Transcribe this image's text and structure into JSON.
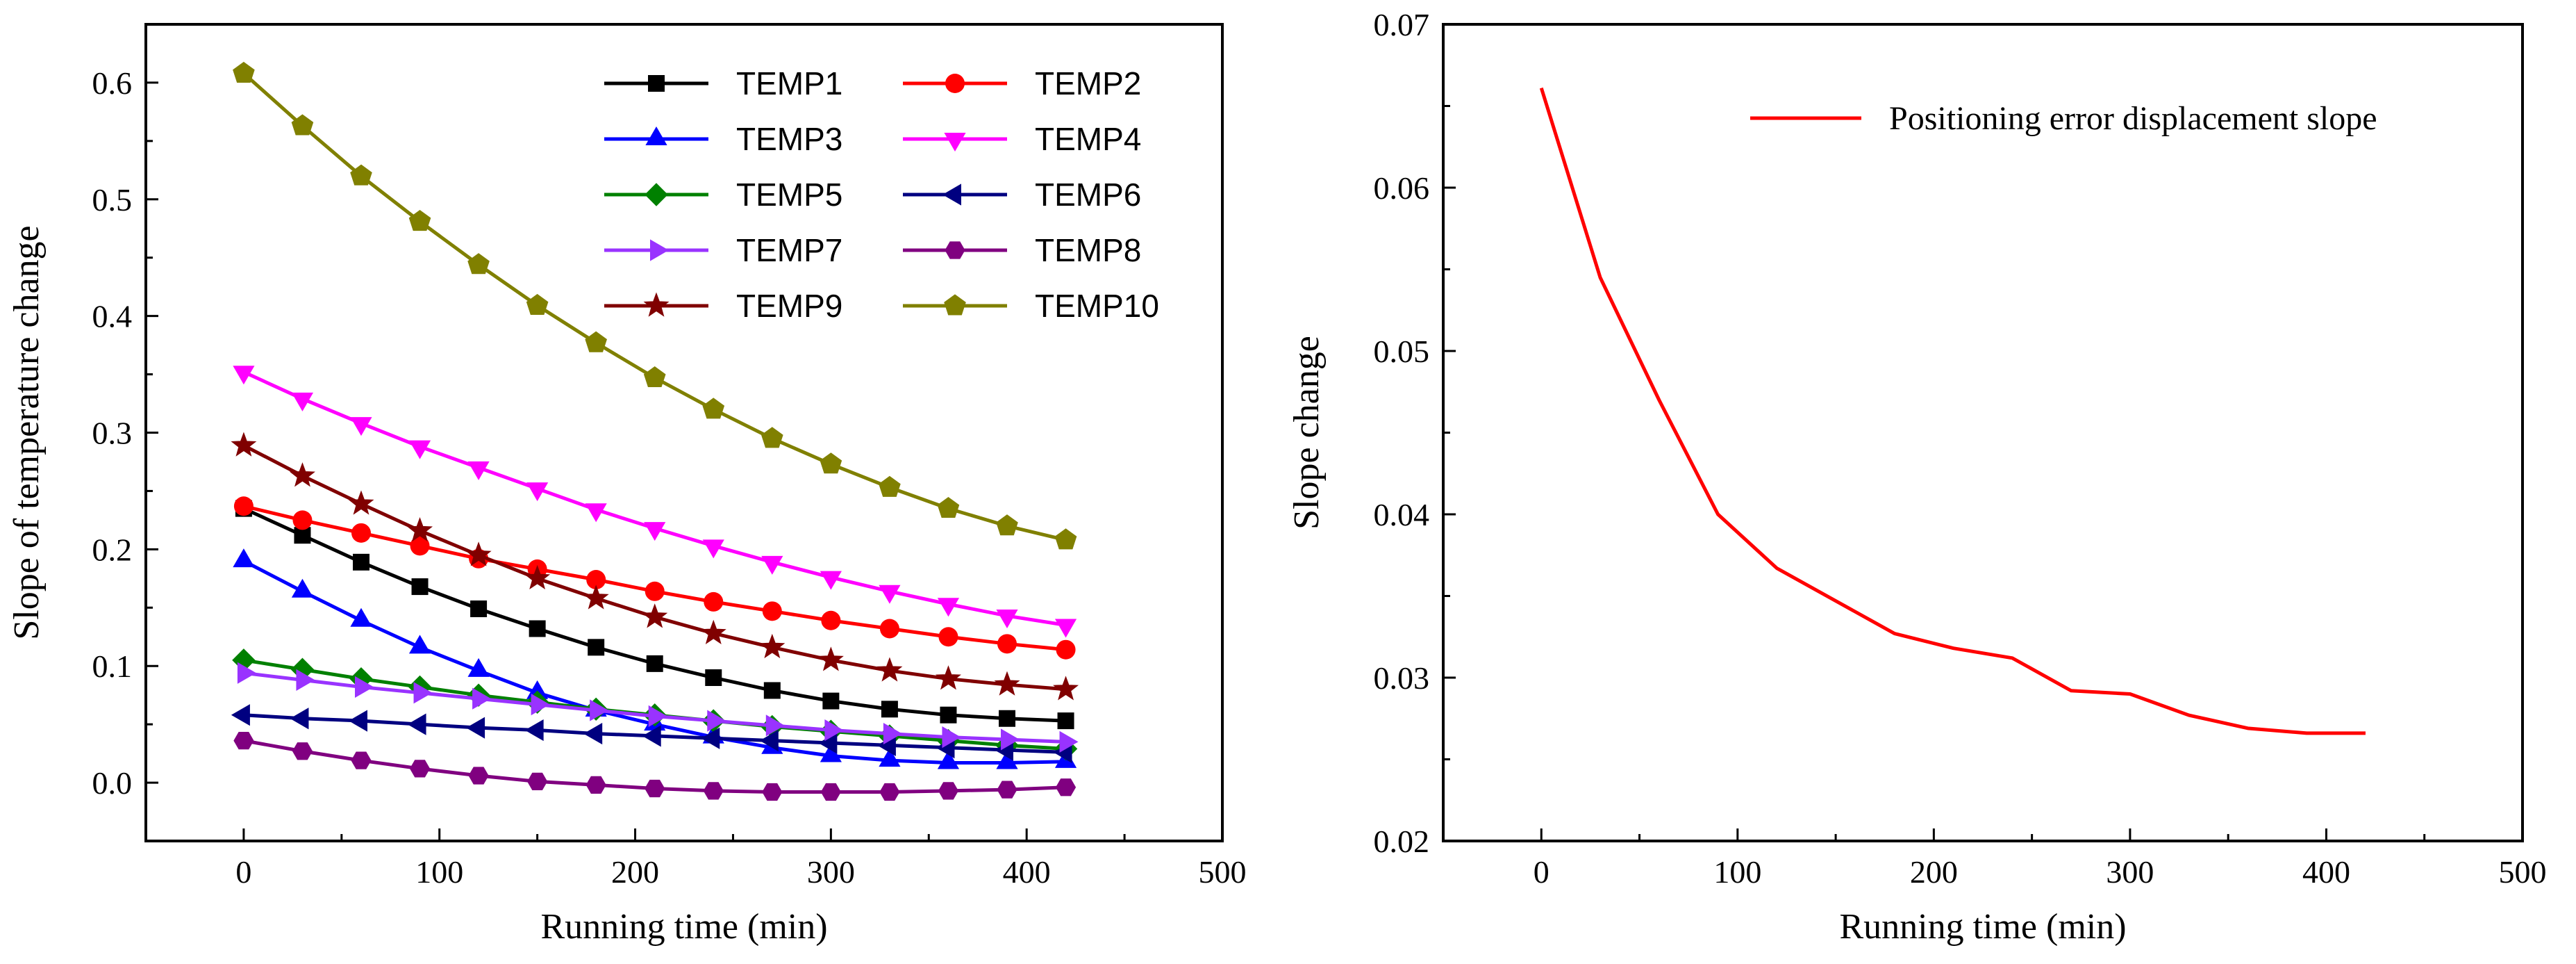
{
  "chart_data": [
    {
      "type": "line",
      "title": "",
      "xlabel": "Running time (min)",
      "ylabel": "Slope of temperature change",
      "xlim": [
        -50,
        500
      ],
      "ylim": [
        -0.05,
        0.65
      ],
      "xticks": [
        "0",
        "100",
        "200",
        "300",
        "400",
        "500"
      ],
      "yticks": [
        "0.0",
        "0.1",
        "0.2",
        "0.3",
        "0.4",
        "0.5",
        "0.6"
      ],
      "legend_position": "top",
      "x": [
        0,
        30,
        60,
        90,
        120,
        150,
        180,
        210,
        240,
        270,
        300,
        330,
        360,
        390,
        420
      ],
      "series": [
        {
          "name": "TEMP1",
          "color": "#000000",
          "marker": "square",
          "values": [
            0.235,
            0.212,
            0.189,
            0.168,
            0.149,
            0.132,
            0.116,
            0.102,
            0.09,
            0.079,
            0.07,
            0.063,
            0.058,
            0.055,
            0.053
          ]
        },
        {
          "name": "TEMP2",
          "color": "#ff0000",
          "marker": "circle",
          "values": [
            0.237,
            0.225,
            0.214,
            0.203,
            0.192,
            0.183,
            0.174,
            0.164,
            0.155,
            0.147,
            0.139,
            0.132,
            0.125,
            0.119,
            0.114
          ]
        },
        {
          "name": "TEMP3",
          "color": "#0000ff",
          "marker": "triangle-up",
          "values": [
            0.19,
            0.164,
            0.139,
            0.116,
            0.096,
            0.077,
            0.062,
            0.05,
            0.039,
            0.03,
            0.023,
            0.019,
            0.017,
            0.017,
            0.018
          ]
        },
        {
          "name": "TEMP4",
          "color": "#ff00ff",
          "marker": "triangle-down",
          "values": [
            0.352,
            0.329,
            0.308,
            0.288,
            0.27,
            0.252,
            0.234,
            0.218,
            0.203,
            0.189,
            0.176,
            0.164,
            0.153,
            0.143,
            0.135
          ]
        },
        {
          "name": "TEMP5",
          "color": "#008000",
          "marker": "diamond",
          "values": [
            0.105,
            0.097,
            0.089,
            0.082,
            0.075,
            0.069,
            0.063,
            0.058,
            0.053,
            0.048,
            0.044,
            0.04,
            0.036,
            0.032,
            0.029
          ]
        },
        {
          "name": "TEMP6",
          "color": "#000080",
          "marker": "triangle-left",
          "values": [
            0.058,
            0.055,
            0.053,
            0.05,
            0.047,
            0.045,
            0.042,
            0.04,
            0.038,
            0.036,
            0.034,
            0.032,
            0.03,
            0.028,
            0.026
          ]
        },
        {
          "name": "TEMP7",
          "color": "#9933ff",
          "marker": "triangle-right",
          "values": [
            0.094,
            0.088,
            0.082,
            0.077,
            0.072,
            0.067,
            0.062,
            0.057,
            0.053,
            0.049,
            0.045,
            0.042,
            0.039,
            0.037,
            0.035
          ]
        },
        {
          "name": "TEMP8",
          "color": "#800080",
          "marker": "hexagon",
          "values": [
            0.036,
            0.027,
            0.019,
            0.012,
            0.006,
            0.001,
            -0.002,
            -0.005,
            -0.007,
            -0.008,
            -0.008,
            -0.008,
            -0.007,
            -0.006,
            -0.004
          ]
        },
        {
          "name": "TEMP9",
          "color": "#800000",
          "marker": "star",
          "values": [
            0.289,
            0.263,
            0.239,
            0.216,
            0.195,
            0.175,
            0.158,
            0.142,
            0.128,
            0.116,
            0.105,
            0.096,
            0.089,
            0.084,
            0.08
          ]
        },
        {
          "name": "TEMP10",
          "color": "#808000",
          "marker": "pentagon",
          "values": [
            0.608,
            0.563,
            0.52,
            0.481,
            0.444,
            0.409,
            0.377,
            0.347,
            0.32,
            0.295,
            0.273,
            0.253,
            0.235,
            0.22,
            0.208
          ]
        }
      ]
    },
    {
      "type": "line",
      "title": "",
      "xlabel": "Running time (min)",
      "ylabel": "Slope change",
      "xlim": [
        -50,
        500
      ],
      "ylim": [
        0.02,
        0.07
      ],
      "xticks": [
        "0",
        "100",
        "200",
        "300",
        "400",
        "500"
      ],
      "yticks": [
        "0.02",
        "0.03",
        "0.04",
        "0.05",
        "0.06",
        "0.07"
      ],
      "legend_position": "top-right",
      "x": [
        0,
        30,
        60,
        90,
        120,
        150,
        180,
        210,
        240,
        270,
        300,
        330,
        360,
        390,
        420
      ],
      "series": [
        {
          "name": "Positioning error displacement slope",
          "color": "#ff0000",
          "marker": "none",
          "values": [
            0.0661,
            0.0545,
            0.047,
            0.04,
            0.0367,
            0.0347,
            0.0327,
            0.0318,
            0.0312,
            0.0292,
            0.029,
            0.0277,
            0.0269,
            0.0266,
            0.0266
          ]
        }
      ]
    }
  ]
}
